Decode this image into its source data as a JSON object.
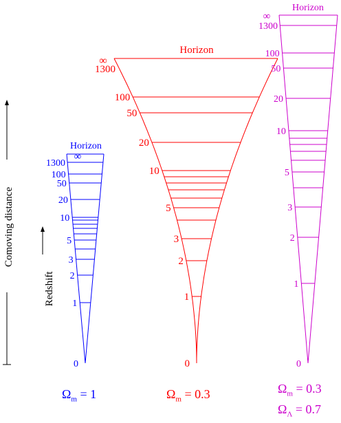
{
  "axes": {
    "comoving": "Comoving distance",
    "redshift": "Redshift"
  },
  "cones": [
    {
      "id": "blue",
      "color": "#0000ff",
      "horizon": "Horizon",
      "infinity": "∞",
      "ticks": [
        {
          "z": 0,
          "label": "0"
        },
        {
          "z": 1,
          "label": "1"
        },
        {
          "z": 2,
          "label": "2"
        },
        {
          "z": 3,
          "label": "3"
        },
        {
          "z": 4,
          "label": ""
        },
        {
          "z": 5,
          "label": "5"
        },
        {
          "z": 6,
          "label": ""
        },
        {
          "z": 7,
          "label": ""
        },
        {
          "z": 8,
          "label": ""
        },
        {
          "z": 9,
          "label": ""
        },
        {
          "z": 10,
          "label": "10"
        },
        {
          "z": 20,
          "label": "20"
        },
        {
          "z": 50,
          "label": "50"
        },
        {
          "z": 100,
          "label": "100"
        },
        {
          "z": 1300,
          "label": "1300"
        }
      ],
      "params": [
        {
          "sub": "m",
          "value": "= 1"
        }
      ]
    },
    {
      "id": "red",
      "color": "#ff0000",
      "horizon": "Horizon",
      "infinity": "∞",
      "ticks": [
        {
          "z": 0,
          "label": "0"
        },
        {
          "z": 1,
          "label": "1"
        },
        {
          "z": 2,
          "label": "2"
        },
        {
          "z": 3,
          "label": "3"
        },
        {
          "z": 4,
          "label": ""
        },
        {
          "z": 5,
          "label": "5"
        },
        {
          "z": 6,
          "label": ""
        },
        {
          "z": 7,
          "label": ""
        },
        {
          "z": 8,
          "label": ""
        },
        {
          "z": 9,
          "label": ""
        },
        {
          "z": 10,
          "label": "10"
        },
        {
          "z": 20,
          "label": "20"
        },
        {
          "z": 50,
          "label": "50"
        },
        {
          "z": 100,
          "label": "100"
        },
        {
          "z": 1300,
          "label": "1300"
        }
      ],
      "params": [
        {
          "sub": "m",
          "value": "= 0.3"
        }
      ]
    },
    {
      "id": "magenta",
      "color": "#cc00cc",
      "horizon": "Horizon",
      "infinity": "∞",
      "ticks": [
        {
          "z": 0,
          "label": "0"
        },
        {
          "z": 1,
          "label": "1"
        },
        {
          "z": 2,
          "label": "2"
        },
        {
          "z": 3,
          "label": "3"
        },
        {
          "z": 4,
          "label": ""
        },
        {
          "z": 5,
          "label": "5"
        },
        {
          "z": 6,
          "label": ""
        },
        {
          "z": 7,
          "label": ""
        },
        {
          "z": 8,
          "label": ""
        },
        {
          "z": 9,
          "label": ""
        },
        {
          "z": 10,
          "label": "10"
        },
        {
          "z": 20,
          "label": "20"
        },
        {
          "z": 50,
          "label": "50"
        },
        {
          "z": 100,
          "label": "100"
        },
        {
          "z": 1300,
          "label": "1300"
        }
      ],
      "params": [
        {
          "sub": "m",
          "value": "= 0.3"
        },
        {
          "sub": "Λ",
          "value": "= 0.7"
        }
      ]
    }
  ]
}
